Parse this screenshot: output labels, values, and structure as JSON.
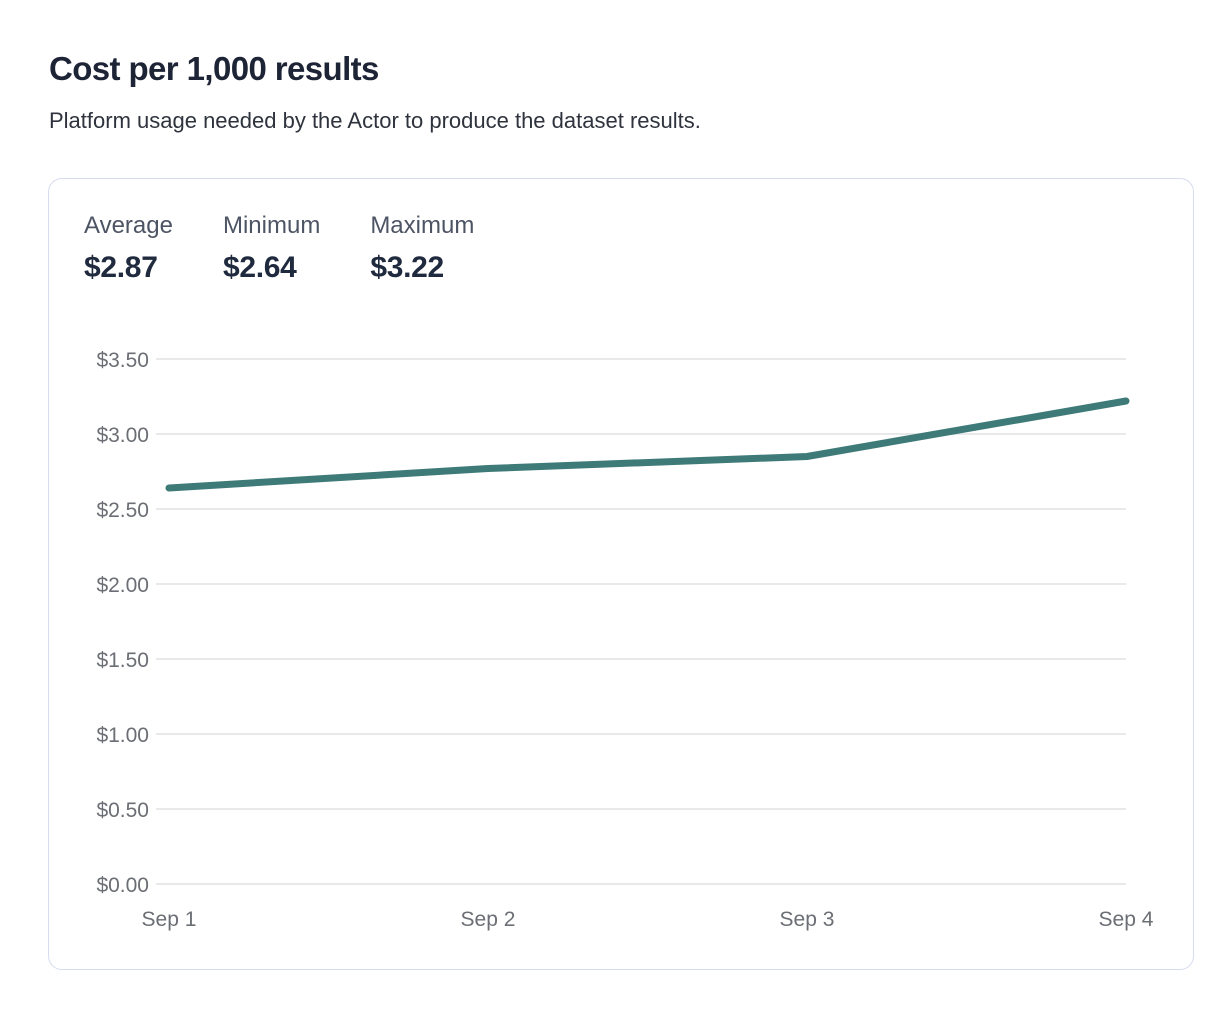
{
  "page": {
    "title": "Cost per 1,000 results",
    "subtitle": "Platform usage needed by the Actor to produce the dataset results."
  },
  "stats": [
    {
      "label": "Average",
      "value": "$2.87"
    },
    {
      "label": "Minimum",
      "value": "$2.64"
    },
    {
      "label": "Maximum",
      "value": "$3.22"
    }
  ],
  "chart_data": {
    "type": "line",
    "title": "Cost per 1,000 results",
    "x": [
      "Sep 1",
      "Sep 2",
      "Sep 3",
      "Sep 4"
    ],
    "series": [
      {
        "name": "Cost per 1,000 results",
        "values": [
          2.64,
          2.77,
          2.85,
          3.22
        ]
      }
    ],
    "xlabel": "",
    "ylabel": "",
    "ylim": [
      0,
      3.5
    ],
    "ytick_step": 0.5,
    "ytick_labels": [
      "$3.50",
      "$3.00",
      "$2.50",
      "$2.00",
      "$1.50",
      "$1.00",
      "$0.50",
      "$0.00"
    ],
    "grid": true,
    "legend": "none",
    "summary": {
      "average": 2.87,
      "minimum": 2.64,
      "maximum": 3.22
    }
  },
  "colors": {
    "line": "#3e7a77",
    "gridline": "#e9e9ec",
    "axis_label": "#6b6e74",
    "card_border": "#d7dbee",
    "title": "#1d2435",
    "subtitle": "#2e333d",
    "stat_label": "#4d5464",
    "stat_value": "#202a3e"
  }
}
